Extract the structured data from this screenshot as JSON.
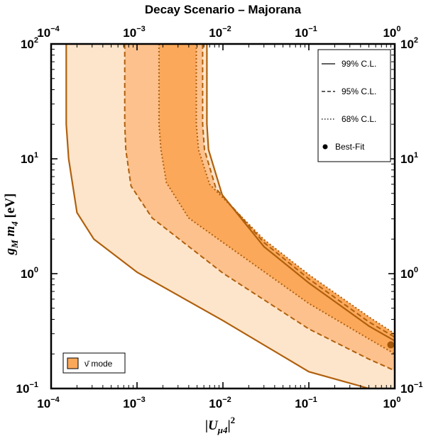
{
  "chart_data": {
    "type": "area",
    "title": "Decay Scenario – Majorana",
    "xlabel": "|Uμ4|²",
    "ylabel": "gM m4 [eV]",
    "xscale": "log",
    "yscale": "log",
    "xlim": [
      0.0001,
      1
    ],
    "ylim": [
      0.1,
      100
    ],
    "x_ticks": [
      {
        "base": "10",
        "exp": "−4"
      },
      {
        "base": "10",
        "exp": "−3"
      },
      {
        "base": "10",
        "exp": "−2"
      },
      {
        "base": "10",
        "exp": "−1"
      },
      {
        "base": "10",
        "exp": "0"
      }
    ],
    "y_ticks": [
      {
        "base": "10",
        "exp": "−1"
      },
      {
        "base": "10",
        "exp": "0"
      },
      {
        "base": "10",
        "exp": "1"
      },
      {
        "base": "10",
        "exp": "2"
      }
    ],
    "regions": [
      {
        "name": "99% C.L.",
        "line_style": "solid",
        "fill": "#fde5cb",
        "left_boundary": [
          [
            0.00015,
            100
          ],
          [
            0.00015,
            20
          ],
          [
            0.00016,
            10
          ],
          [
            0.0002,
            3.4
          ],
          [
            0.000314,
            2.0
          ],
          [
            0.001,
            1.03
          ],
          [
            0.01,
            0.39
          ],
          [
            0.1,
            0.14
          ],
          [
            0.5,
            0.1
          ]
        ],
        "right_boundary": [
          [
            0.0065,
            100
          ],
          [
            0.0065,
            20
          ],
          [
            0.0068,
            12
          ],
          [
            0.0098,
            4.86
          ],
          [
            0.03,
            1.72
          ],
          [
            0.1,
            0.83
          ],
          [
            0.5,
            0.35
          ],
          [
            1,
            0.26
          ]
        ]
      },
      {
        "name": "95% C.L.",
        "line_style": "dashed",
        "fill": "#fcc18c",
        "left_boundary": [
          [
            0.00072,
            100
          ],
          [
            0.00072,
            20
          ],
          [
            0.00074,
            12
          ],
          [
            0.00085,
            5.8
          ],
          [
            0.0015,
            3.05
          ],
          [
            0.01,
            1.01
          ],
          [
            0.1,
            0.33
          ],
          [
            0.5,
            0.18
          ],
          [
            1,
            0.143
          ]
        ],
        "right_boundary": [
          [
            0.0058,
            100
          ],
          [
            0.0058,
            20
          ],
          [
            0.0061,
            12
          ],
          [
            0.0083,
            5.5
          ],
          [
            0.03,
            1.87
          ],
          [
            0.1,
            0.9
          ],
          [
            0.5,
            0.38
          ],
          [
            1,
            0.28
          ]
        ]
      },
      {
        "name": "68% C.L.",
        "line_style": "dotted",
        "fill": "#fba85a",
        "left_boundary": [
          [
            0.0018,
            100
          ],
          [
            0.0018,
            20
          ],
          [
            0.0019,
            12
          ],
          [
            0.0022,
            6.2
          ],
          [
            0.004,
            3.05
          ],
          [
            0.01,
            1.87
          ],
          [
            0.1,
            0.55
          ],
          [
            0.5,
            0.27
          ],
          [
            1,
            0.2
          ]
        ],
        "right_boundary": [
          [
            0.0049,
            100
          ],
          [
            0.0049,
            20
          ],
          [
            0.0052,
            12
          ],
          [
            0.007,
            6.0
          ],
          [
            0.03,
            1.98
          ],
          [
            0.1,
            0.98
          ],
          [
            0.5,
            0.42
          ],
          [
            1,
            0.3
          ]
        ]
      }
    ],
    "best_fit": {
      "name": "Best-Fit",
      "x": 0.9,
      "y": 0.24
    },
    "legend": {
      "placement": "top-right",
      "entries": [
        {
          "label": "99% C.L.",
          "style": "solid"
        },
        {
          "label": "95% C.L.",
          "style": "dashed"
        },
        {
          "label": "68% C.L.",
          "style": "dotted"
        },
        {
          "label": "Best-Fit",
          "style": "dot"
        }
      ]
    },
    "mode_legend": {
      "placement": "bottom-left",
      "label": "ν̄ mode"
    }
  },
  "colors": {
    "line": "#b0600d",
    "dot": "#a4560a",
    "fill_99": "#fde5cb",
    "fill_95": "#fcc18c",
    "fill_68": "#fba85a",
    "mode_swatch": "#fba85a"
  }
}
